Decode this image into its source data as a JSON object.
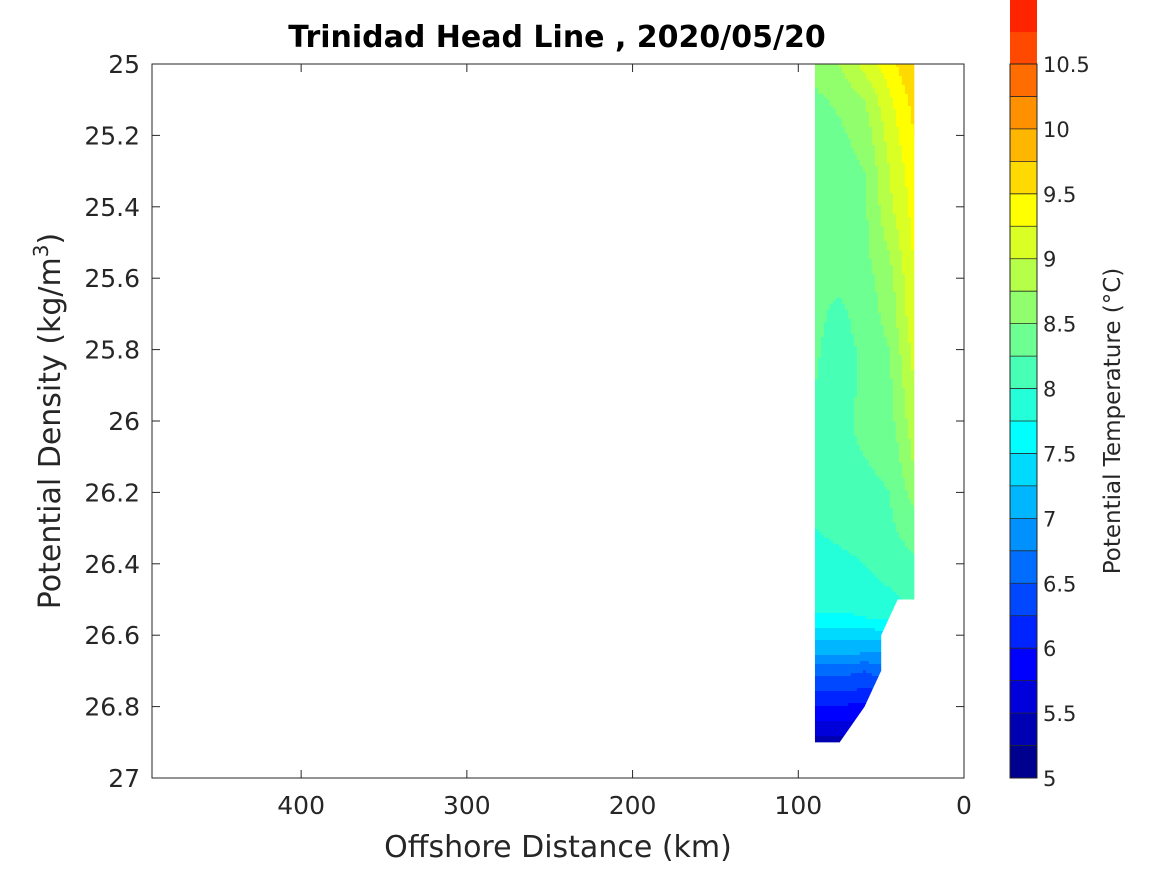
{
  "chart_data": {
    "type": "heatmap",
    "title": "Trinidad Head Line , 2020/05/20",
    "xlabel": "Offshore Distance (km)",
    "ylabel_main": "Potential Density (kg/m",
    "ylabel_sup": "3",
    "ylabel_close": ")",
    "xlim": [
      490,
      0
    ],
    "ylim": [
      25,
      27
    ],
    "y_reversed": true,
    "x_reversed": true,
    "x_ticks": [
      400,
      300,
      200,
      100,
      0
    ],
    "x_tick_labels": [
      "400",
      "300",
      "200",
      "100",
      "0"
    ],
    "y_ticks": [
      25,
      25.2,
      25.4,
      25.6,
      25.8,
      26,
      26.2,
      26.4,
      26.6,
      26.8,
      27
    ],
    "y_tick_labels": [
      "25",
      "25.2",
      "25.4",
      "25.6",
      "25.8",
      "26",
      "26.2",
      "26.4",
      "26.6",
      "26.8",
      "27"
    ],
    "colorbar": {
      "label": "Potential Temperature (°C)",
      "range": [
        5,
        10.5
      ],
      "ticks": [
        5,
        5.5,
        6,
        6.5,
        7,
        7.5,
        8,
        8.5,
        9,
        9.5,
        10,
        10.5
      ],
      "tick_labels": [
        "5",
        "5.5",
        "6",
        "6.5",
        "7",
        "7.5",
        "8",
        "8.5",
        "9",
        "9.5",
        "10",
        "10.5"
      ],
      "level_step": 0.25,
      "colors": [
        "#00008F",
        "#0000B3",
        "#0000DB",
        "#0000FF",
        "#0024FF",
        "#0048FF",
        "#006DFF",
        "#0091FF",
        "#00B6FF",
        "#00DAFF",
        "#00FFFF",
        "#24FFDA",
        "#48FFB6",
        "#6DFF91",
        "#91FF6D",
        "#B6FF48",
        "#DAFF24",
        "#FFFF00",
        "#FFDA00",
        "#FFB600",
        "#FF9100",
        "#FF6D00",
        "#FF4800",
        "#FF2400"
      ]
    },
    "section_columns": [
      {
        "x": 90,
        "temps": [
          8.6,
          8.45,
          8.35,
          8.3,
          8.3,
          8.3,
          8.3,
          8.3,
          8.28,
          8.25,
          8.2,
          8.15,
          8.1,
          8.0,
          7.92,
          7.85,
          7.72,
          7.35,
          7.05,
          6.6,
          6.3,
          6.0,
          5.7,
          5.4
        ]
      },
      {
        "x": 75,
        "temps": [
          8.75,
          8.55,
          8.45,
          8.4,
          8.3,
          8.3,
          8.3,
          8.2,
          8.15,
          8.15,
          8.2,
          8.2,
          8.15,
          8.05,
          7.95,
          7.85,
          7.7,
          7.35,
          7.05,
          6.6,
          6.3,
          6.0,
          5.7,
          5.4
        ]
      },
      {
        "x": 60,
        "temps": [
          9.1,
          8.75,
          8.6,
          8.5,
          8.45,
          8.45,
          8.4,
          8.35,
          8.3,
          8.3,
          8.3,
          8.25,
          8.2,
          8.1,
          8.0,
          7.9,
          7.75,
          7.35,
          7.0,
          6.5,
          6.25,
          5.9,
          5.65,
          5.4
        ]
      },
      {
        "x": 45,
        "temps": [
          9.4,
          9.2,
          9.1,
          9.0,
          8.95,
          8.8,
          8.65,
          8.6,
          8.5,
          8.45,
          8.4,
          8.3,
          8.25,
          8.2,
          8.1,
          7.95,
          7.8,
          7.4,
          7.0,
          6.7,
          6.3,
          6.0,
          5.7,
          5.4
        ]
      },
      {
        "x": 30,
        "temps": [
          9.75,
          9.6,
          9.5,
          9.4,
          9.35,
          9.3,
          9.25,
          9.2,
          9.1,
          9.0,
          8.9,
          8.8,
          8.6,
          8.4,
          8.2,
          8.05,
          7.9,
          7.5,
          7.1,
          6.7,
          6.3,
          6.0,
          5.7,
          5.4
        ]
      }
    ],
    "section_density_rows": [
      25,
      25.1,
      25.2,
      25.3,
      25.4,
      25.5,
      25.6,
      25.7,
      25.8,
      25.9,
      26,
      26.1,
      26.2,
      26.3,
      26.4,
      26.5,
      26.55,
      26.6,
      26.65,
      26.7,
      26.75,
      26.8,
      26.85,
      26.9
    ],
    "data_boundary_deepest_density": [
      {
        "x": 90,
        "density": 26.9
      },
      {
        "x": 75,
        "density": 26.9
      },
      {
        "x": 60,
        "density": 26.8
      },
      {
        "x": 50,
        "density": 26.7
      },
      {
        "x": 50,
        "density": 26.6
      },
      {
        "x": 40,
        "density": 26.5
      },
      {
        "x": 30,
        "density": 26.5
      }
    ]
  }
}
